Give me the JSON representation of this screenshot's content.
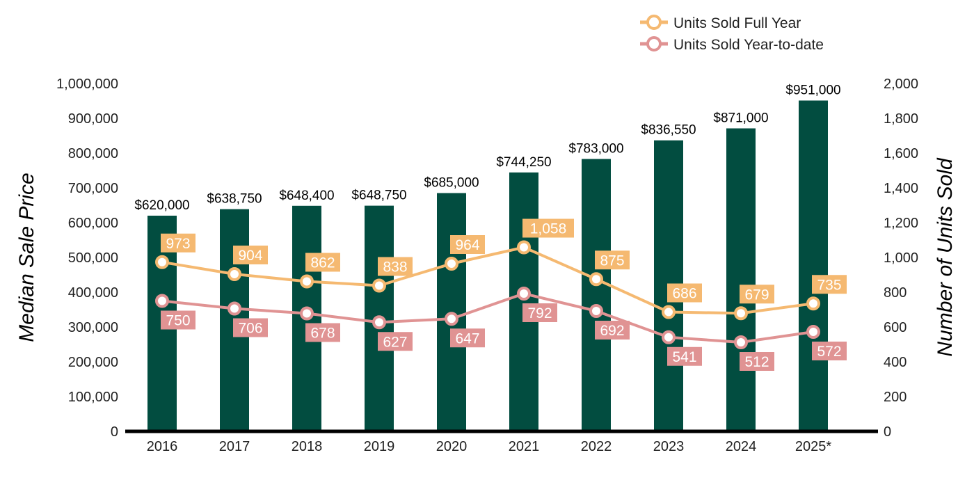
{
  "chart_data": {
    "type": "bar",
    "categories": [
      "2016",
      "2017",
      "2018",
      "2019",
      "2020",
      "2021",
      "2022",
      "2023",
      "2024",
      "2025*"
    ],
    "bar_series": {
      "values": [
        620000,
        638750,
        648400,
        648750,
        685000,
        744250,
        783000,
        836550,
        871000,
        951000
      ],
      "labels": [
        "$620,000",
        "$638,750",
        "$648,400",
        "$648,750",
        "$685,000",
        "$744,250",
        "$783,000",
        "$836,550",
        "$871,000",
        "$951,000"
      ],
      "color": "#024d40"
    },
    "line_series": [
      {
        "name": "Units Sold Full Year",
        "values": [
          973,
          904,
          862,
          838,
          964,
          1058,
          875,
          686,
          679,
          735
        ],
        "labels": [
          "973",
          "904",
          "862",
          "838",
          "964",
          "1,058",
          "875",
          "686",
          "679",
          "735"
        ],
        "color": "#f5b971",
        "label_position": "above"
      },
      {
        "name": "Units Sold Year-to-date",
        "values": [
          750,
          706,
          678,
          627,
          647,
          792,
          692,
          541,
          512,
          572
        ],
        "labels": [
          "750",
          "706",
          "678",
          "627",
          "647",
          "792",
          "692",
          "541",
          "512",
          "572"
        ],
        "color": "#e09393",
        "label_position": "below"
      }
    ],
    "ylabel": "Median Sale Price",
    "y2label": "Number of Units Sold",
    "ylim": [
      0,
      1000000
    ],
    "y2lim": [
      0,
      2000
    ],
    "yticks": [
      "0",
      "100,000",
      "200,000",
      "300,000",
      "400,000",
      "500,000",
      "600,000",
      "700,000",
      "800,000",
      "900,000",
      "1,000,000"
    ],
    "y2ticks": [
      "0",
      "200",
      "400",
      "600",
      "800",
      "1,000",
      "1,200",
      "1,400",
      "1,600",
      "1,800",
      "2,000"
    ],
    "grid": false,
    "legend": "top-right"
  }
}
